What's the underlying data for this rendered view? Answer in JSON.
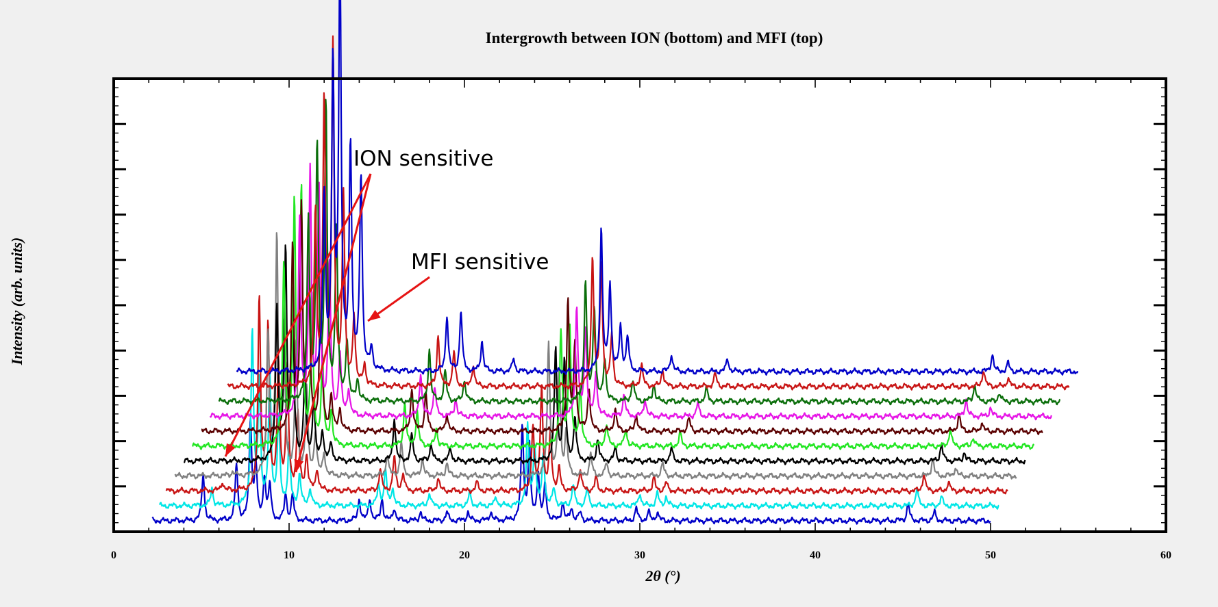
{
  "chart_data": {
    "type": "line",
    "title": "Intergrowth between ION (bottom) and MFI (top)",
    "xlabel": "2θ (°)",
    "ylabel": "Intensity (arb. units)",
    "xlim": [
      0,
      60
    ],
    "xticks": [
      "0",
      "10",
      "20",
      "30",
      "40",
      "50",
      "60"
    ],
    "y_tick_labels": false,
    "grid": false,
    "legend": "none",
    "stacking": "offset waterfall, bottom trace = ION, top trace = MFI",
    "series": [
      {
        "color": "#0000c8",
        "x_range": [
          2.2,
          50.0
        ],
        "baseline": 0.3,
        "peaks": [
          [
            5.1,
            11
          ],
          [
            7.0,
            13
          ],
          [
            7.8,
            23
          ],
          [
            8.1,
            13
          ],
          [
            8.6,
            10
          ],
          [
            8.9,
            8
          ],
          [
            9.8,
            6
          ],
          [
            10.2,
            6
          ],
          [
            14.0,
            5
          ],
          [
            14.6,
            5
          ],
          [
            15.3,
            5
          ],
          [
            16.0,
            3
          ],
          [
            17.5,
            2
          ],
          [
            19.0,
            2
          ],
          [
            20.2,
            2
          ],
          [
            21.5,
            2
          ],
          [
            23.3,
            22
          ],
          [
            23.7,
            17
          ],
          [
            24.2,
            11
          ],
          [
            24.6,
            8
          ],
          [
            25.6,
            4
          ],
          [
            26.1,
            3
          ],
          [
            26.6,
            2
          ],
          [
            29.8,
            3
          ],
          [
            30.5,
            2
          ],
          [
            31.0,
            2
          ],
          [
            45.3,
            4
          ],
          [
            46.8,
            2
          ]
        ]
      },
      {
        "color": "#00e6e6",
        "x_range": [
          2.6,
          50.5
        ],
        "baseline": 0.3,
        "peaks": [
          [
            5.6,
            4
          ],
          [
            7.9,
            40
          ],
          [
            8.3,
            28
          ],
          [
            8.9,
            30
          ],
          [
            9.4,
            20
          ],
          [
            10.0,
            14
          ],
          [
            10.6,
            7
          ],
          [
            11.2,
            4
          ],
          [
            15.1,
            5
          ],
          [
            15.5,
            8
          ],
          [
            15.9,
            4
          ],
          [
            18.0,
            3
          ],
          [
            20.3,
            3
          ],
          [
            21.8,
            2
          ],
          [
            23.6,
            18
          ],
          [
            24.0,
            14
          ],
          [
            24.5,
            12
          ],
          [
            25.1,
            4
          ],
          [
            26.2,
            5
          ],
          [
            27.0,
            4
          ],
          [
            30.0,
            3
          ],
          [
            31.0,
            3
          ],
          [
            31.5,
            2
          ],
          [
            45.8,
            4
          ],
          [
            47.2,
            2
          ]
        ]
      },
      {
        "color": "#c81414",
        "x_range": [
          3.0,
          51.0
        ],
        "baseline": 0.3,
        "peaks": [
          [
            6.2,
            2
          ],
          [
            8.3,
            45
          ],
          [
            8.8,
            38
          ],
          [
            9.4,
            30
          ],
          [
            9.9,
            28
          ],
          [
            10.5,
            18
          ],
          [
            11.0,
            8
          ],
          [
            11.6,
            5
          ],
          [
            15.2,
            5
          ],
          [
            16.0,
            8
          ],
          [
            16.5,
            4
          ],
          [
            18.5,
            3
          ],
          [
            20.7,
            2
          ],
          [
            23.9,
            15
          ],
          [
            24.4,
            24
          ],
          [
            24.9,
            13
          ],
          [
            25.4,
            5
          ],
          [
            26.6,
            5
          ],
          [
            27.5,
            3
          ],
          [
            30.8,
            3
          ],
          [
            31.5,
            2
          ],
          [
            46.2,
            4
          ],
          [
            47.6,
            2
          ]
        ]
      },
      {
        "color": "#808080",
        "x_range": [
          3.5,
          51.5
        ],
        "baseline": 0.3,
        "peaks": [
          [
            6.8,
            1
          ],
          [
            8.8,
            33
          ],
          [
            9.3,
            55
          ],
          [
            9.7,
            33
          ],
          [
            10.4,
            30
          ],
          [
            11.0,
            20
          ],
          [
            11.5,
            10
          ],
          [
            12.0,
            5
          ],
          [
            15.6,
            5
          ],
          [
            16.4,
            8
          ],
          [
            17.6,
            4
          ],
          [
            19.0,
            3
          ],
          [
            24.8,
            31
          ],
          [
            25.4,
            24
          ],
          [
            25.8,
            10
          ],
          [
            27.2,
            5
          ],
          [
            28.1,
            3
          ],
          [
            31.3,
            3
          ],
          [
            46.7,
            4
          ],
          [
            48.0,
            2
          ]
        ]
      },
      {
        "color": "#000000",
        "x_range": [
          4.0,
          52.0
        ],
        "baseline": 0.3,
        "peaks": [
          [
            9.3,
            35
          ],
          [
            9.8,
            48
          ],
          [
            10.2,
            38
          ],
          [
            10.9,
            20
          ],
          [
            11.4,
            14
          ],
          [
            11.9,
            7
          ],
          [
            12.4,
            4
          ],
          [
            16.0,
            10
          ],
          [
            17.0,
            6
          ],
          [
            18.1,
            4
          ],
          [
            19.2,
            3
          ],
          [
            25.2,
            26
          ],
          [
            25.7,
            23
          ],
          [
            26.3,
            10
          ],
          [
            27.6,
            5
          ],
          [
            28.6,
            3
          ],
          [
            31.8,
            3
          ],
          [
            47.2,
            4
          ],
          [
            48.5,
            2
          ]
        ]
      },
      {
        "color": "#22e622",
        "x_range": [
          4.5,
          52.5
        ],
        "baseline": 0.3,
        "peaks": [
          [
            9.7,
            42
          ],
          [
            10.3,
            55
          ],
          [
            10.7,
            58
          ],
          [
            11.3,
            34
          ],
          [
            11.9,
            20
          ],
          [
            12.4,
            8
          ],
          [
            16.6,
            10
          ],
          [
            17.3,
            8
          ],
          [
            18.4,
            4
          ],
          [
            25.5,
            26
          ],
          [
            26.0,
            28
          ],
          [
            26.6,
            14
          ],
          [
            28.1,
            5
          ],
          [
            29.2,
            4
          ],
          [
            32.3,
            3
          ],
          [
            47.7,
            4
          ],
          [
            49.0,
            2
          ]
        ]
      },
      {
        "color": "#5a0000",
        "x_range": [
          5.0,
          53.0
        ],
        "baseline": 0.3,
        "peaks": [
          [
            10.2,
            43
          ],
          [
            10.7,
            50
          ],
          [
            11.1,
            44
          ],
          [
            11.8,
            32
          ],
          [
            12.4,
            8
          ],
          [
            12.9,
            5
          ],
          [
            17.0,
            10
          ],
          [
            17.8,
            9
          ],
          [
            19.0,
            4
          ],
          [
            25.9,
            30
          ],
          [
            26.3,
            20
          ],
          [
            27.1,
            10
          ],
          [
            28.6,
            5
          ],
          [
            29.8,
            4
          ],
          [
            32.8,
            3
          ],
          [
            48.2,
            4
          ],
          [
            49.5,
            2
          ]
        ]
      },
      {
        "color": "#e614e6",
        "x_range": [
          5.5,
          53.5
        ],
        "baseline": 0.3,
        "peaks": [
          [
            10.6,
            45
          ],
          [
            11.2,
            56
          ],
          [
            11.7,
            52
          ],
          [
            12.3,
            35
          ],
          [
            12.9,
            14
          ],
          [
            13.4,
            6
          ],
          [
            17.5,
            10
          ],
          [
            18.3,
            7
          ],
          [
            19.5,
            4
          ],
          [
            26.4,
            25
          ],
          [
            26.9,
            20
          ],
          [
            27.5,
            10
          ],
          [
            29.1,
            5
          ],
          [
            30.3,
            4
          ],
          [
            33.3,
            3
          ],
          [
            48.6,
            4
          ],
          [
            50.0,
            2
          ]
        ]
      },
      {
        "color": "#0a6e0a",
        "x_range": [
          6.0,
          54.0
        ],
        "baseline": 0.3,
        "peaks": [
          [
            11.1,
            42
          ],
          [
            11.6,
            58
          ],
          [
            12.1,
            68
          ],
          [
            12.7,
            40
          ],
          [
            13.3,
            14
          ],
          [
            13.9,
            5
          ],
          [
            18.0,
            12
          ],
          [
            18.9,
            7
          ],
          [
            20.0,
            5
          ],
          [
            26.9,
            28
          ],
          [
            27.4,
            22
          ],
          [
            28.0,
            10
          ],
          [
            29.6,
            5
          ],
          [
            30.8,
            4
          ],
          [
            33.8,
            3
          ],
          [
            49.1,
            4
          ],
          [
            50.5,
            2
          ]
        ]
      },
      {
        "color": "#c81414",
        "x_range": [
          6.5,
          54.5
        ],
        "baseline": 0.3,
        "peaks": [
          [
            11.5,
            40
          ],
          [
            12.0,
            65
          ],
          [
            12.5,
            78
          ],
          [
            13.1,
            44
          ],
          [
            13.7,
            16
          ],
          [
            14.3,
            5
          ],
          [
            18.5,
            12
          ],
          [
            19.4,
            8
          ],
          [
            20.5,
            5
          ],
          [
            27.3,
            30
          ],
          [
            27.8,
            28
          ],
          [
            28.4,
            12
          ],
          [
            30.1,
            5
          ],
          [
            31.3,
            4
          ],
          [
            34.3,
            3
          ],
          [
            49.6,
            4
          ],
          [
            51.0,
            2
          ]
        ]
      },
      {
        "color": "#0000c8",
        "x_range": [
          7.0,
          55.0
        ],
        "baseline": 0.3,
        "peaks": [
          [
            12.0,
            40
          ],
          [
            12.5,
            70
          ],
          [
            12.9,
            95
          ],
          [
            13.5,
            52
          ],
          [
            14.1,
            45
          ],
          [
            14.7,
            5
          ],
          [
            19.0,
            13
          ],
          [
            19.8,
            14
          ],
          [
            21.0,
            7
          ],
          [
            22.8,
            3
          ],
          [
            27.8,
            33
          ],
          [
            28.3,
            20
          ],
          [
            28.9,
            10
          ],
          [
            29.3,
            8
          ],
          [
            31.8,
            4
          ],
          [
            35.0,
            3
          ],
          [
            50.1,
            4
          ],
          [
            51.0,
            2
          ]
        ]
      }
    ],
    "annotations": [
      {
        "text": "ION sensitive"
      },
      {
        "text": "MFI sensitive"
      }
    ],
    "arrow_color": "#e61414"
  }
}
